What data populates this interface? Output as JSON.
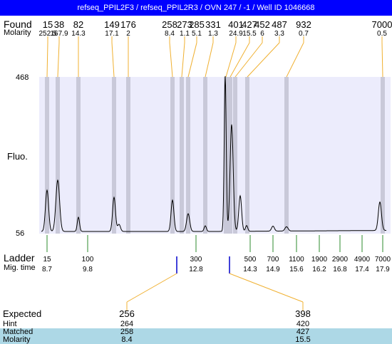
{
  "title": "refseq_PPIL2F3 / refseq_PPIL2R3 / OVN 247 / -1 / Well ID 1046668",
  "labels": {
    "found": "Found",
    "molarity": "Molarity",
    "fluo": "Fluo.",
    "ladder": "Ladder",
    "mig_time": "Mig. time",
    "expected": "Expected",
    "hint": "Hint",
    "matched": "Matched",
    "molarity_bottom": "Molarity"
  },
  "y_axis": {
    "top": "468",
    "bottom": "56"
  },
  "found_peaks": [
    {
      "size": "15",
      "molarity": "252.5"
    },
    {
      "size": "38",
      "molarity": "167.9"
    },
    {
      "size": "82",
      "molarity": "14.3"
    },
    {
      "size": "149",
      "molarity": "17.1"
    },
    {
      "size": "176",
      "molarity": "2"
    },
    {
      "size": "258",
      "molarity": "8.4"
    },
    {
      "size": "273",
      "molarity": "1.1"
    },
    {
      "size": "285",
      "molarity": "5.1"
    },
    {
      "size": "331",
      "molarity": "1.3"
    },
    {
      "size": "401",
      "molarity": "24.9"
    },
    {
      "size": "427",
      "molarity": "15.5"
    },
    {
      "size": "452",
      "molarity": "6"
    },
    {
      "size": "487",
      "molarity": "3.3"
    },
    {
      "size": "932",
      "molarity": "0.7"
    },
    {
      "size": "7000",
      "molarity": "0.5"
    }
  ],
  "ladder_marks": [
    {
      "size": "15",
      "time": "8.7"
    },
    {
      "size": "100",
      "time": "9.8"
    },
    {
      "size": "300",
      "time": "12.8"
    },
    {
      "size": "500",
      "time": "14.3"
    },
    {
      "size": "700",
      "time": "14.9"
    },
    {
      "size": "1100",
      "time": "15.6"
    },
    {
      "size": "1900",
      "time": "16.2"
    },
    {
      "size": "2900",
      "time": "16.8"
    },
    {
      "size": "4900",
      "time": "17.4"
    },
    {
      "size": "7000",
      "time": "17.9"
    }
  ],
  "expected_matches": [
    {
      "expected": "256",
      "hint": "264",
      "matched": "258",
      "molarity": "8.4"
    },
    {
      "expected": "398",
      "hint": "420",
      "matched": "427",
      "molarity": "15.5"
    }
  ],
  "colors": {
    "title_bg": "#0000ff",
    "plot_bg": "#ececfc",
    "band": "#c9c9d9",
    "orange_connector": "#f0b030",
    "ladder_green": "#2e8b2e",
    "expected_marker": "#0000cc",
    "match_highlight": "#add8e6"
  },
  "chart_data": {
    "type": "line",
    "title": "",
    "xlabel": "Mig. time",
    "ylabel": "Fluo.",
    "ylim": [
      56,
      468
    ],
    "peaks_bp": [
      15,
      38,
      82,
      149,
      176,
      258,
      273,
      285,
      331,
      401,
      427,
      452,
      487,
      932,
      7000
    ]
  }
}
